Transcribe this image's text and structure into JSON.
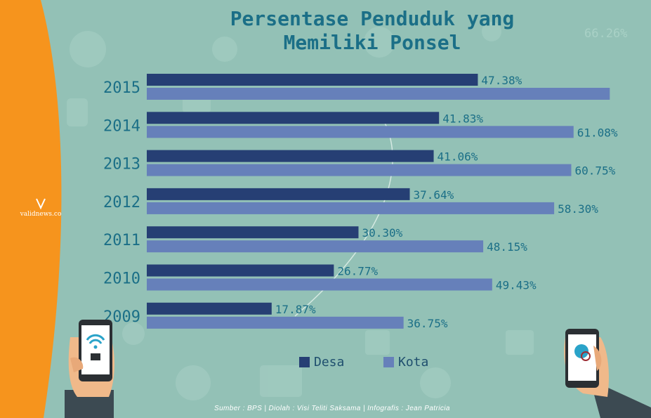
{
  "title_line1": "Persentase Penduduk yang",
  "title_line2": "Memiliki Ponsel",
  "ghost_label": "66.26%",
  "brand": "validnews.co",
  "footer": "Sumber : BPS | Diolah : Visi Teliti Saksama | Infografis : Jean Patricia",
  "colors": {
    "desa": "#263f74",
    "kota": "#6680ba",
    "text": "#1b6f87",
    "accent": "#f6941d",
    "background": "#93c1b6"
  },
  "chart_data": {
    "type": "bar",
    "orientation": "horizontal",
    "title": "Persentase Penduduk yang Memiliki Ponsel",
    "categories": [
      "2015",
      "2014",
      "2013",
      "2012",
      "2011",
      "2010",
      "2009"
    ],
    "series": [
      {
        "name": "Desa",
        "values": [
          47.38,
          41.83,
          41.06,
          37.64,
          30.3,
          26.77,
          17.87
        ],
        "labels": [
          "47.38%",
          "41.83%",
          "41.06%",
          "37.64%",
          "30.30%",
          "26.77%",
          "17.87%"
        ]
      },
      {
        "name": "Kota",
        "values": [
          66.26,
          61.08,
          60.75,
          58.3,
          48.15,
          49.43,
          36.75
        ],
        "labels": [
          "",
          "61.08%",
          "60.75%",
          "58.30%",
          "48.15%",
          "49.43%",
          "36.75%"
        ]
      }
    ],
    "xlim": [
      0,
      100
    ],
    "grid": false,
    "legend": "bottom-right"
  }
}
